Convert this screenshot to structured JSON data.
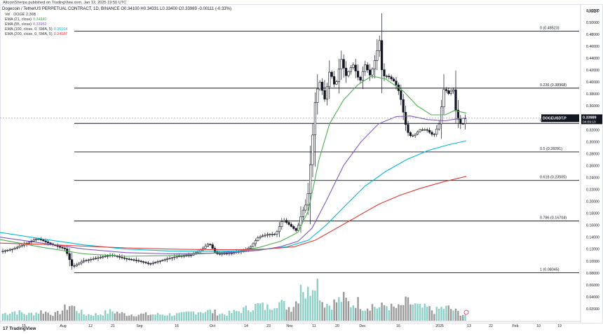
{
  "header": {
    "published": "AltcoinSherpa published on TradingView.com, Jan 12, 2025 19:50 UTC",
    "title": "Dogecoin / TetherUS PERPETUAL CONTRACT, 1D, BINANCE O0.34100 H0.34331 L0.33400 C0.33989 -0.00111 (-0.33%)",
    "legend": [
      {
        "label": "Vol · DOGE",
        "value": "2.36B",
        "color": "#333333"
      },
      {
        "label": "EMA (21, close)",
        "value": "0.34840",
        "color": "#4caf50"
      },
      {
        "label": "EMA (55, close)",
        "value": "0.33952",
        "color": "#7e57c2"
      },
      {
        "label": "EMA (100, close, 0, SMA, 5)",
        "value": "0.30164",
        "color": "#00bcd4"
      },
      {
        "label": "EMA (200, close, 0, SMA, 5)",
        "value": "0.24187",
        "color": "#e53935"
      }
    ]
  },
  "footer": {
    "logo": "TradingView",
    "logo_mark": "17"
  },
  "chart_data": {
    "type": "candlestick",
    "symbol": "DOGEUSDT.P",
    "currency": "USDT",
    "last_price": "0.33989",
    "last_price_time": "04:09:10",
    "y_ticks": [
      "0.52000",
      "0.50000",
      "0.48000",
      "0.46000",
      "0.44000",
      "0.42000",
      "0.40000",
      "0.38000",
      "0.36000",
      "0.34000",
      "0.32000",
      "0.30000",
      "0.28000",
      "0.26000",
      "0.24000",
      "0.22000",
      "0.20000",
      "0.18000",
      "0.16000",
      "0.14000",
      "0.12000",
      "0.10000",
      "0.08000",
      "0.06000",
      "0.04000",
      "0.02000"
    ],
    "ylim": [
      0.0,
      0.528
    ],
    "x_ticks": [
      "15",
      "Aug",
      "12",
      "21",
      "Sep",
      "16",
      "Oct",
      "14",
      "23",
      "Nov",
      "11",
      "20",
      "Dec",
      "16",
      "2025",
      "13",
      "22",
      "Feb",
      "10",
      "19"
    ],
    "fibonacci": [
      {
        "label": "0 (0.48523)",
        "value": 0.48523
      },
      {
        "label": "0.236 (0.38968)",
        "value": 0.38968
      },
      {
        "label": "0.382 (0.33058)",
        "value": 0.33058
      },
      {
        "label": "0.5 (0.28281)",
        "value": 0.28281
      },
      {
        "label": "0.618 (0.23505)",
        "value": 0.23505
      },
      {
        "label": "0.786 (0.16704)",
        "value": 0.16704
      },
      {
        "label": "1 (0.08045)",
        "value": 0.08045
      }
    ],
    "ema_series": [
      {
        "name": "EMA 21",
        "color": "#4caf50",
        "points": [
          [
            0,
            0.136
          ],
          [
            60,
            0.123
          ],
          [
            120,
            0.112
          ],
          [
            180,
            0.108
          ],
          [
            240,
            0.109
          ],
          [
            300,
            0.113
          ],
          [
            340,
            0.117
          ],
          [
            370,
            0.123
          ],
          [
            400,
            0.133
          ],
          [
            425,
            0.148
          ],
          [
            440,
            0.185
          ],
          [
            455,
            0.27
          ],
          [
            470,
            0.33
          ],
          [
            490,
            0.37
          ],
          [
            510,
            0.395
          ],
          [
            530,
            0.41
          ],
          [
            550,
            0.405
          ],
          [
            575,
            0.385
          ],
          [
            595,
            0.36
          ],
          [
            615,
            0.345
          ],
          [
            635,
            0.345
          ],
          [
            648,
            0.352
          ],
          [
            665,
            0.348
          ]
        ]
      },
      {
        "name": "EMA 55",
        "color": "#7e57c2",
        "points": [
          [
            0,
            0.14
          ],
          [
            60,
            0.13
          ],
          [
            120,
            0.12
          ],
          [
            180,
            0.114
          ],
          [
            240,
            0.112
          ],
          [
            300,
            0.113
          ],
          [
            340,
            0.115
          ],
          [
            370,
            0.118
          ],
          [
            400,
            0.124
          ],
          [
            425,
            0.133
          ],
          [
            445,
            0.155
          ],
          [
            465,
            0.2
          ],
          [
            490,
            0.26
          ],
          [
            515,
            0.3
          ],
          [
            540,
            0.33
          ],
          [
            565,
            0.342
          ],
          [
            585,
            0.343
          ],
          [
            610,
            0.337
          ],
          [
            635,
            0.335
          ],
          [
            650,
            0.338
          ],
          [
            665,
            0.3395
          ]
        ]
      },
      {
        "name": "EMA 100",
        "color": "#00bcd4",
        "points": [
          [
            0,
            0.148
          ],
          [
            60,
            0.137
          ],
          [
            120,
            0.127
          ],
          [
            180,
            0.12
          ],
          [
            240,
            0.117
          ],
          [
            300,
            0.116
          ],
          [
            340,
            0.117
          ],
          [
            380,
            0.12
          ],
          [
            410,
            0.124
          ],
          [
            440,
            0.135
          ],
          [
            465,
            0.16
          ],
          [
            490,
            0.19
          ],
          [
            520,
            0.225
          ],
          [
            550,
            0.25
          ],
          [
            580,
            0.27
          ],
          [
            610,
            0.285
          ],
          [
            640,
            0.295
          ],
          [
            665,
            0.3016
          ]
        ]
      },
      {
        "name": "EMA 200",
        "color": "#e53935",
        "points": [
          [
            0,
            0.13
          ],
          [
            60,
            0.128
          ],
          [
            120,
            0.125
          ],
          [
            180,
            0.122
          ],
          [
            240,
            0.12
          ],
          [
            300,
            0.119
          ],
          [
            340,
            0.119
          ],
          [
            380,
            0.12
          ],
          [
            420,
            0.124
          ],
          [
            450,
            0.135
          ],
          [
            480,
            0.155
          ],
          [
            510,
            0.175
          ],
          [
            540,
            0.195
          ],
          [
            570,
            0.21
          ],
          [
            600,
            0.222
          ],
          [
            630,
            0.232
          ],
          [
            665,
            0.2419
          ]
        ]
      }
    ],
    "price_path": [
      [
        0,
        0.115
      ],
      [
        20,
        0.12
      ],
      [
        40,
        0.13
      ],
      [
        55,
        0.138
      ],
      [
        75,
        0.128
      ],
      [
        95,
        0.12
      ],
      [
        105,
        0.09
      ],
      [
        120,
        0.1
      ],
      [
        140,
        0.105
      ],
      [
        160,
        0.11
      ],
      [
        180,
        0.104
      ],
      [
        200,
        0.1
      ],
      [
        215,
        0.095
      ],
      [
        235,
        0.102
      ],
      [
        255,
        0.108
      ],
      [
        275,
        0.11
      ],
      [
        290,
        0.12
      ],
      [
        300,
        0.13
      ],
      [
        310,
        0.112
      ],
      [
        330,
        0.113
      ],
      [
        350,
        0.117
      ],
      [
        360,
        0.125
      ],
      [
        370,
        0.14
      ],
      [
        385,
        0.145
      ],
      [
        395,
        0.145
      ],
      [
        405,
        0.17
      ],
      [
        415,
        0.16
      ],
      [
        425,
        0.15
      ],
      [
        432,
        0.18
      ],
      [
        440,
        0.2
      ],
      [
        447,
        0.3
      ],
      [
        452,
        0.38
      ],
      [
        458,
        0.4
      ],
      [
        465,
        0.37
      ],
      [
        472,
        0.42
      ],
      [
        480,
        0.39
      ],
      [
        488,
        0.44
      ],
      [
        495,
        0.41
      ],
      [
        505,
        0.43
      ],
      [
        515,
        0.4
      ],
      [
        522,
        0.43
      ],
      [
        530,
        0.41
      ],
      [
        537,
        0.44
      ],
      [
        543,
        0.47
      ],
      [
        547,
        0.41
      ],
      [
        555,
        0.41
      ],
      [
        565,
        0.4
      ],
      [
        572,
        0.38
      ],
      [
        580,
        0.33
      ],
      [
        585,
        0.31
      ],
      [
        592,
        0.31
      ],
      [
        600,
        0.32
      ],
      [
        610,
        0.32
      ],
      [
        620,
        0.31
      ],
      [
        628,
        0.33
      ],
      [
        635,
        0.39
      ],
      [
        642,
        0.38
      ],
      [
        648,
        0.39
      ],
      [
        652,
        0.35
      ],
      [
        657,
        0.33
      ],
      [
        662,
        0.33
      ],
      [
        666,
        0.34
      ]
    ],
    "volume_profile": [
      [
        0,
        2
      ],
      [
        20,
        3
      ],
      [
        40,
        2
      ],
      [
        60,
        3
      ],
      [
        80,
        2
      ],
      [
        100,
        5
      ],
      [
        120,
        2
      ],
      [
        140,
        2
      ],
      [
        160,
        3
      ],
      [
        180,
        2
      ],
      [
        200,
        2
      ],
      [
        220,
        2
      ],
      [
        240,
        2
      ],
      [
        260,
        2
      ],
      [
        280,
        3
      ],
      [
        300,
        3
      ],
      [
        320,
        2
      ],
      [
        340,
        3
      ],
      [
        355,
        4
      ],
      [
        370,
        5
      ],
      [
        380,
        4
      ],
      [
        395,
        6
      ],
      [
        405,
        5
      ],
      [
        415,
        4
      ],
      [
        425,
        7
      ],
      [
        430,
        14
      ],
      [
        435,
        8
      ],
      [
        440,
        9
      ],
      [
        445,
        12
      ],
      [
        450,
        15
      ],
      [
        455,
        10
      ],
      [
        460,
        6
      ],
      [
        470,
        5
      ],
      [
        480,
        6
      ],
      [
        490,
        7
      ],
      [
        500,
        5
      ],
      [
        510,
        6
      ],
      [
        520,
        4
      ],
      [
        530,
        5
      ],
      [
        540,
        4
      ],
      [
        550,
        5
      ],
      [
        560,
        4
      ],
      [
        570,
        4
      ],
      [
        580,
        6
      ],
      [
        590,
        5
      ],
      [
        600,
        4
      ],
      [
        610,
        4
      ],
      [
        620,
        3
      ],
      [
        630,
        4
      ],
      [
        640,
        4
      ],
      [
        650,
        3
      ],
      [
        660,
        2
      ],
      [
        665,
        2
      ]
    ]
  }
}
